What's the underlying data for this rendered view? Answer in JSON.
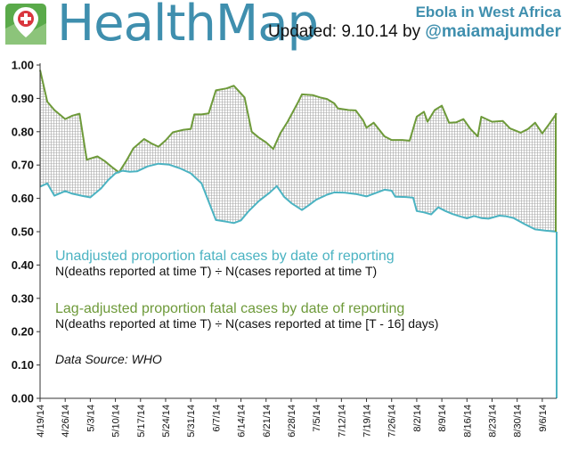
{
  "header": {
    "brand": "HealthMap",
    "title": "Ebola in West Africa",
    "updated_prefix": "Updated: 9.10.14 by ",
    "author": "@maiamajumder"
  },
  "legend": {
    "series1_title": "Unadjusted proportion fatal cases by date of reporting",
    "series1_formula": "N(deaths reported at time T) ÷ N(cases reported at time T)",
    "series2_title": "Lag-adjusted proportion fatal cases by date of reporting",
    "series2_formula": "N(deaths reported at time T) ÷ N(cases reported at time [T - 16] days)",
    "source": "Data Source: WHO"
  },
  "colors": {
    "unadjusted": "#4bb3c2",
    "adjusted": "#6e9a3a",
    "brand": "#3f8fae",
    "logo_green": "#5aaa4a",
    "logo_red": "#d9363e"
  },
  "chart_data": {
    "type": "line",
    "x_start": "2014-04-19",
    "x_end": "2014-09-10",
    "xticks": [
      "4/19/14",
      "4/26/14",
      "5/3/14",
      "5/10/14",
      "5/17/14",
      "5/24/14",
      "5/31/14",
      "6/7/14",
      "6/14/14",
      "6/21/14",
      "6/28/14",
      "7/5/14",
      "7/12/14",
      "7/19/14",
      "7/26/14",
      "8/2/14",
      "8/9/14",
      "8/16/14",
      "8/23/14",
      "8/30/14",
      "9/6/14"
    ],
    "ylim": [
      0,
      1
    ],
    "yticks": [
      "0.00",
      "0.10",
      "0.20",
      "0.30",
      "0.40",
      "0.50",
      "0.60",
      "0.70",
      "0.80",
      "0.90",
      "1.00"
    ],
    "grid": false,
    "series": [
      {
        "key": "unadjusted",
        "points": [
          [
            "2014-04-19",
            0.635
          ],
          [
            "2014-04-21",
            0.645
          ],
          [
            "2014-04-23",
            0.608
          ],
          [
            "2014-04-26",
            0.622
          ],
          [
            "2014-04-28",
            0.614
          ],
          [
            "2014-05-01",
            0.607
          ],
          [
            "2014-05-03",
            0.603
          ],
          [
            "2014-05-06",
            0.63
          ],
          [
            "2014-05-08",
            0.655
          ],
          [
            "2014-05-10",
            0.675
          ],
          [
            "2014-05-12",
            0.683
          ],
          [
            "2014-05-14",
            0.68
          ],
          [
            "2014-05-16",
            0.681
          ],
          [
            "2014-05-19",
            0.696
          ],
          [
            "2014-05-22",
            0.704
          ],
          [
            "2014-05-25",
            0.701
          ],
          [
            "2014-05-28",
            0.69
          ],
          [
            "2014-05-31",
            0.675
          ],
          [
            "2014-06-03",
            0.645
          ],
          [
            "2014-06-05",
            0.59
          ],
          [
            "2014-06-07",
            0.535
          ],
          [
            "2014-06-10",
            0.53
          ],
          [
            "2014-06-12",
            0.526
          ],
          [
            "2014-06-14",
            0.534
          ],
          [
            "2014-06-16",
            0.56
          ],
          [
            "2014-06-19",
            0.592
          ],
          [
            "2014-06-22",
            0.617
          ],
          [
            "2014-06-24",
            0.637
          ],
          [
            "2014-06-26",
            0.605
          ],
          [
            "2014-06-28",
            0.586
          ],
          [
            "2014-07-01",
            0.565
          ],
          [
            "2014-07-03",
            0.58
          ],
          [
            "2014-07-05",
            0.596
          ],
          [
            "2014-07-08",
            0.611
          ],
          [
            "2014-07-10",
            0.618
          ],
          [
            "2014-07-13",
            0.617
          ],
          [
            "2014-07-16",
            0.613
          ],
          [
            "2014-07-19",
            0.606
          ],
          [
            "2014-07-22",
            0.618
          ],
          [
            "2014-07-24",
            0.626
          ],
          [
            "2014-07-26",
            0.623
          ],
          [
            "2014-07-27",
            0.605
          ],
          [
            "2014-07-30",
            0.604
          ],
          [
            "2014-08-01",
            0.602
          ],
          [
            "2014-08-02",
            0.562
          ],
          [
            "2014-08-04",
            0.558
          ],
          [
            "2014-08-06",
            0.552
          ],
          [
            "2014-08-08",
            0.573
          ],
          [
            "2014-08-10",
            0.562
          ],
          [
            "2014-08-12",
            0.553
          ],
          [
            "2014-08-14",
            0.546
          ],
          [
            "2014-08-16",
            0.54
          ],
          [
            "2014-08-18",
            0.547
          ],
          [
            "2014-08-20",
            0.541
          ],
          [
            "2014-08-22",
            0.539
          ],
          [
            "2014-08-25",
            0.548
          ],
          [
            "2014-08-27",
            0.546
          ],
          [
            "2014-08-29",
            0.541
          ],
          [
            "2014-09-01",
            0.523
          ],
          [
            "2014-09-04",
            0.507
          ],
          [
            "2014-09-07",
            0.503
          ],
          [
            "2014-09-10",
            0.5
          ]
        ]
      },
      {
        "key": "adjusted",
        "points": [
          [
            "2014-04-19",
            0.985
          ],
          [
            "2014-04-21",
            0.89
          ],
          [
            "2014-04-23",
            0.865
          ],
          [
            "2014-04-26",
            0.838
          ],
          [
            "2014-04-28",
            0.848
          ],
          [
            "2014-04-30",
            0.854
          ],
          [
            "2014-05-02",
            0.716
          ],
          [
            "2014-05-05",
            0.726
          ],
          [
            "2014-05-07",
            0.712
          ],
          [
            "2014-05-09",
            0.694
          ],
          [
            "2014-05-11",
            0.678
          ],
          [
            "2014-05-13",
            0.712
          ],
          [
            "2014-05-15",
            0.75
          ],
          [
            "2014-05-18",
            0.778
          ],
          [
            "2014-05-20",
            0.765
          ],
          [
            "2014-05-22",
            0.755
          ],
          [
            "2014-05-24",
            0.774
          ],
          [
            "2014-05-26",
            0.798
          ],
          [
            "2014-05-29",
            0.806
          ],
          [
            "2014-05-31",
            0.808
          ],
          [
            "2014-06-01",
            0.852
          ],
          [
            "2014-06-03",
            0.852
          ],
          [
            "2014-06-05",
            0.855
          ],
          [
            "2014-06-07",
            0.924
          ],
          [
            "2014-06-10",
            0.93
          ],
          [
            "2014-06-12",
            0.938
          ],
          [
            "2014-06-15",
            0.903
          ],
          [
            "2014-06-17",
            0.8
          ],
          [
            "2014-06-19",
            0.782
          ],
          [
            "2014-06-21",
            0.768
          ],
          [
            "2014-06-23",
            0.748
          ],
          [
            "2014-06-25",
            0.796
          ],
          [
            "2014-06-27",
            0.83
          ],
          [
            "2014-06-30",
            0.89
          ],
          [
            "2014-07-01",
            0.912
          ],
          [
            "2014-07-04",
            0.91
          ],
          [
            "2014-07-06",
            0.903
          ],
          [
            "2014-07-08",
            0.898
          ],
          [
            "2014-07-10",
            0.885
          ],
          [
            "2014-07-11",
            0.87
          ],
          [
            "2014-07-14",
            0.865
          ],
          [
            "2014-07-16",
            0.864
          ],
          [
            "2014-07-18",
            0.835
          ],
          [
            "2014-07-19",
            0.812
          ],
          [
            "2014-07-21",
            0.827
          ],
          [
            "2014-07-24",
            0.786
          ],
          [
            "2014-07-26",
            0.775
          ],
          [
            "2014-07-29",
            0.775
          ],
          [
            "2014-07-31",
            0.773
          ],
          [
            "2014-08-02",
            0.845
          ],
          [
            "2014-08-04",
            0.86
          ],
          [
            "2014-08-05",
            0.83
          ],
          [
            "2014-08-07",
            0.865
          ],
          [
            "2014-08-09",
            0.878
          ],
          [
            "2014-08-11",
            0.827
          ],
          [
            "2014-08-13",
            0.828
          ],
          [
            "2014-08-15",
            0.838
          ],
          [
            "2014-08-17",
            0.808
          ],
          [
            "2014-08-19",
            0.786
          ],
          [
            "2014-08-20",
            0.845
          ],
          [
            "2014-08-23",
            0.83
          ],
          [
            "2014-08-26",
            0.832
          ],
          [
            "2014-08-28",
            0.81
          ],
          [
            "2014-08-31",
            0.797
          ],
          [
            "2014-09-02",
            0.808
          ],
          [
            "2014-09-04",
            0.827
          ],
          [
            "2014-09-06",
            0.795
          ],
          [
            "2014-09-08",
            0.824
          ],
          [
            "2014-09-10",
            0.855
          ]
        ]
      }
    ]
  }
}
